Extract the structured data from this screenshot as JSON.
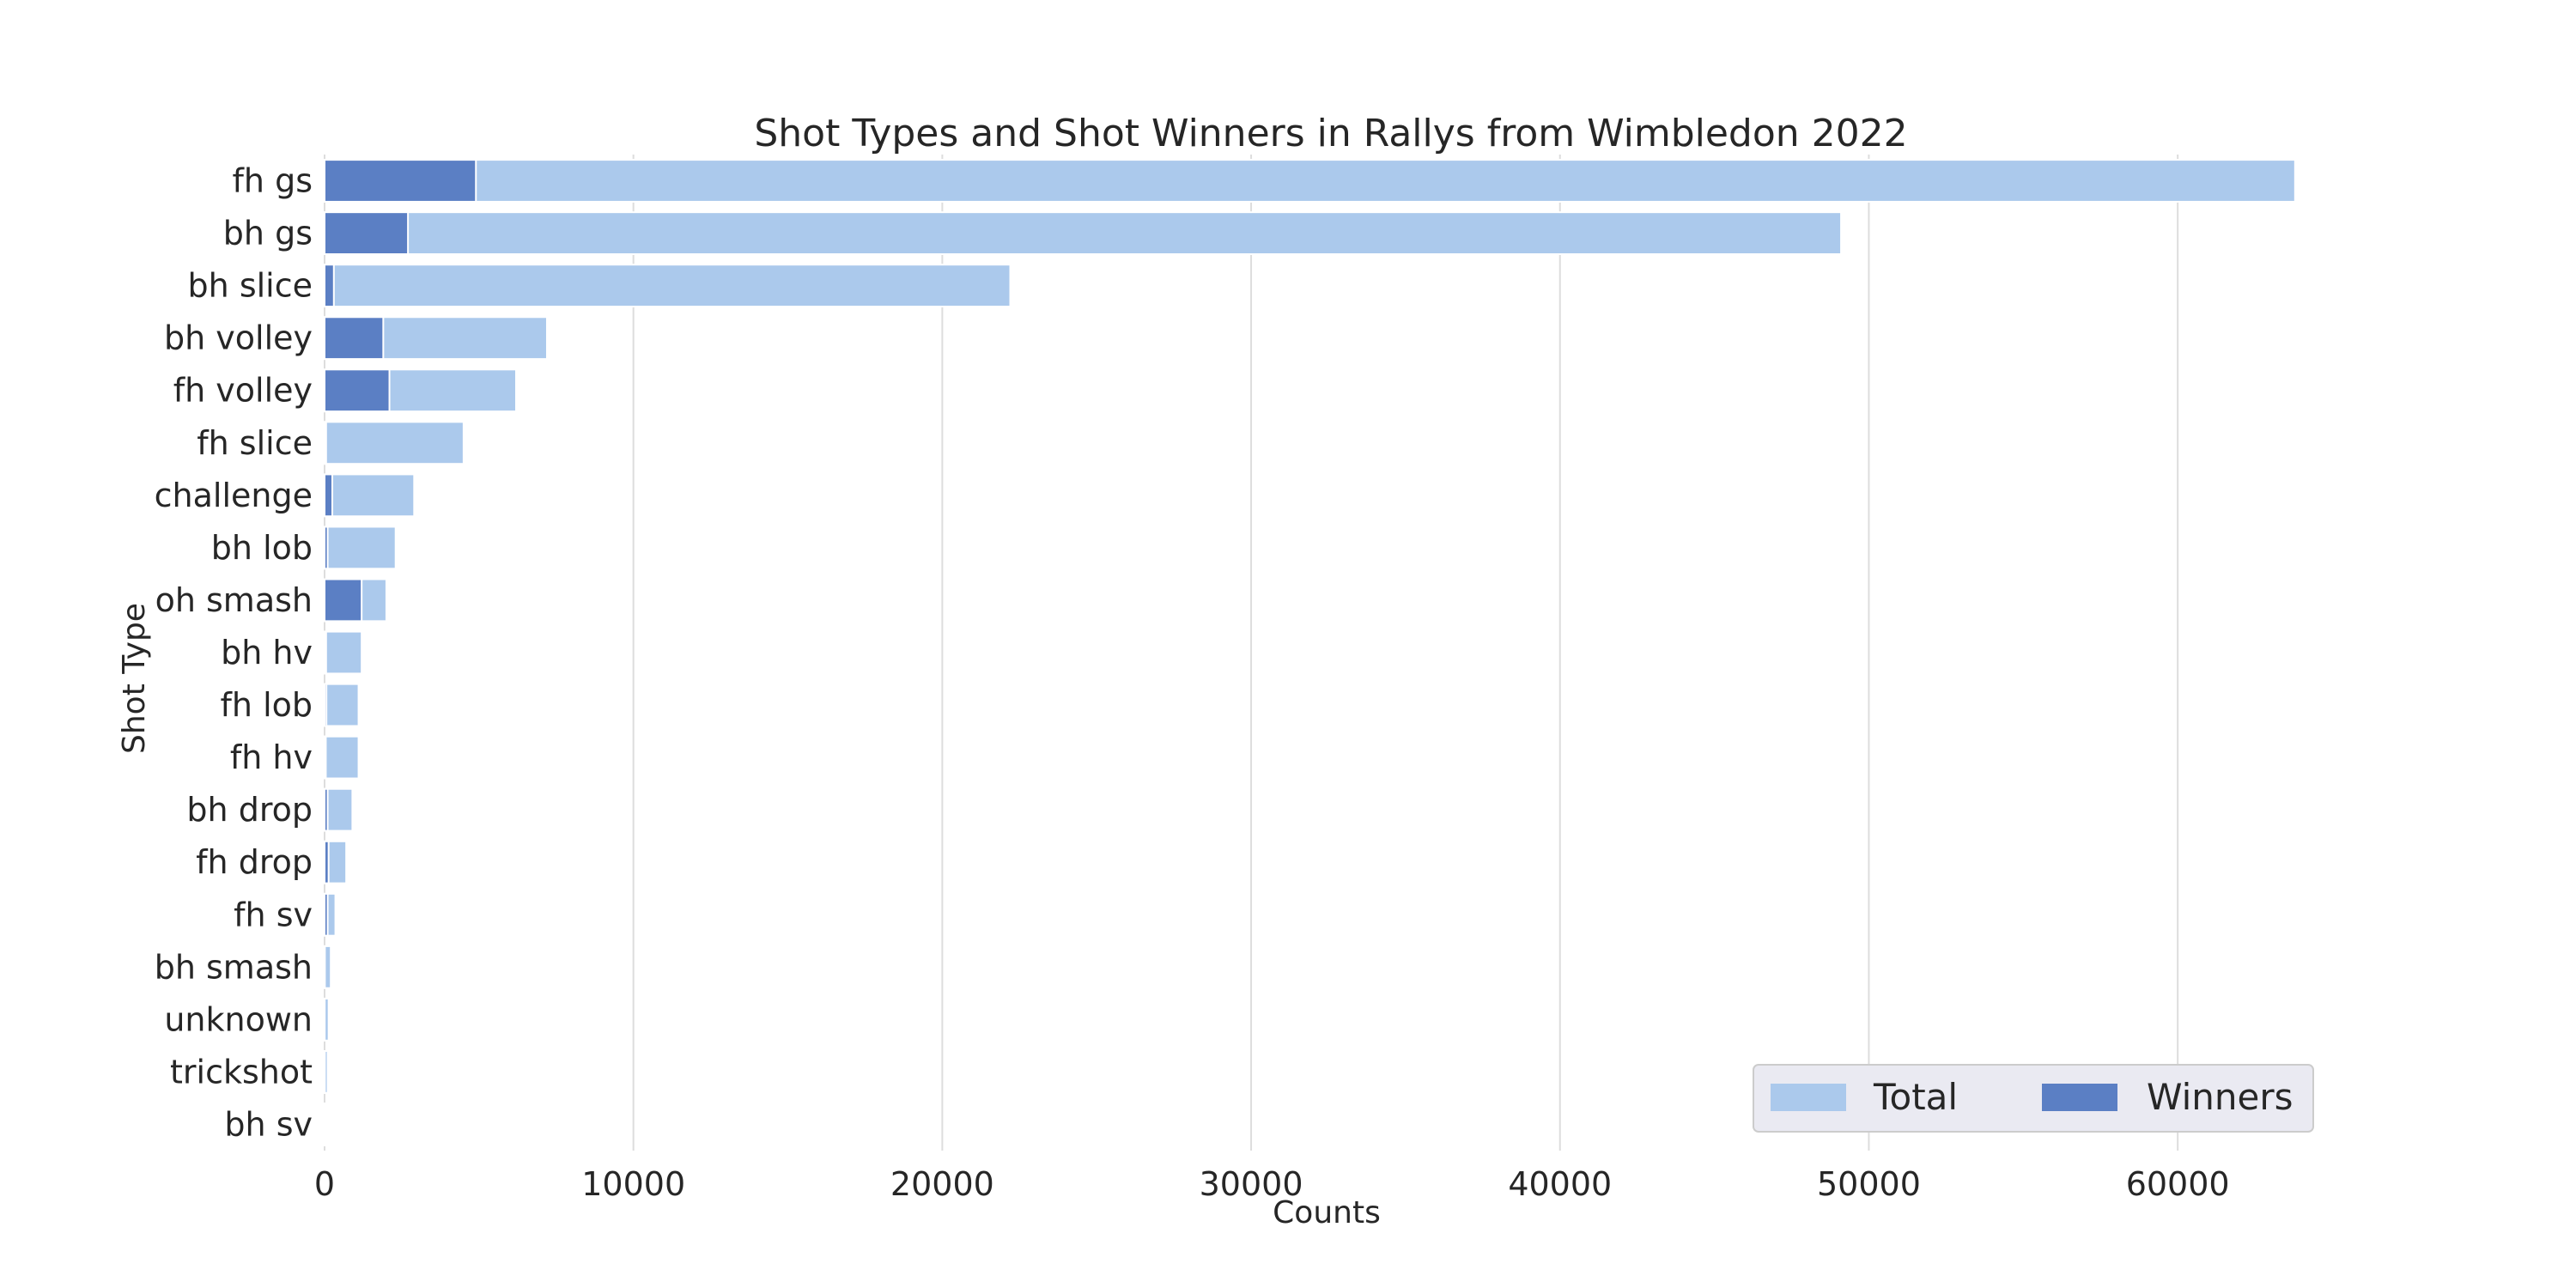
{
  "chart_data": {
    "type": "bar",
    "orientation": "horizontal",
    "stacked": false,
    "title": "Shot Types and Shot Winners in Rallys from Wimbledon 2022",
    "xlabel": "Counts",
    "ylabel": "Shot Type",
    "xlim": [
      0,
      64500
    ],
    "xticks": [
      0,
      10000,
      20000,
      30000,
      40000,
      50000,
      60000
    ],
    "grid": "vertical",
    "legend_position": "lower-right",
    "categories": [
      "fh gs",
      "bh gs",
      "bh slice",
      "bh volley",
      "fh volley",
      "fh slice",
      "challenge",
      "bh lob",
      "oh smash",
      "bh hv",
      "fh lob",
      "fh hv",
      "bh drop",
      "fh drop",
      "fh sv",
      "bh smash",
      "unknown",
      "trickshot",
      "bh sv"
    ],
    "series": [
      {
        "name": "Total",
        "color": "#abc9ec",
        "values": [
          63800,
          49100,
          22200,
          7200,
          6200,
          4500,
          2900,
          2300,
          2000,
          1200,
          1100,
          1100,
          900,
          700,
          350,
          200,
          130,
          100,
          30
        ]
      },
      {
        "name": "Winners",
        "color": "#5b7fc4",
        "values": [
          4900,
          2700,
          300,
          1900,
          2100,
          50,
          250,
          100,
          1200,
          50,
          60,
          40,
          100,
          130,
          100,
          10,
          5,
          10,
          5
        ]
      }
    ]
  }
}
